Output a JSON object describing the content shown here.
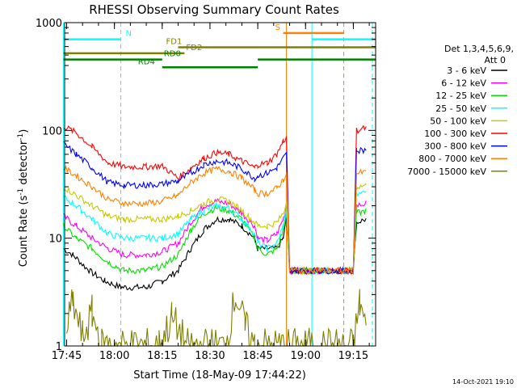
{
  "chart_data": {
    "type": "line",
    "title": "RHESSI Observing Summary Count Rates",
    "xlabel": "Start Time (18-May-09 17:44:22)",
    "ylabel_parts": [
      "Count Rate (s",
      "-1",
      " detector",
      "-1",
      ")"
    ],
    "yscale": "log",
    "ylim": [
      1,
      1000
    ],
    "xlim": [
      "17:44:22",
      "19:22:00"
    ],
    "x_ticks": [
      "17:45",
      "18:00",
      "18:15",
      "18:30",
      "18:45",
      "19:00",
      "19:15"
    ],
    "y_ticks": [
      "1",
      "10",
      "100",
      "1000"
    ],
    "legend_title": [
      "Det 1,3,4,5,6,9,",
      "Att 0"
    ],
    "legend_placement": "right",
    "series": [
      {
        "name": "3 - 6 keV",
        "color": "#000000",
        "points": [
          [
            "17:44",
            8
          ],
          [
            "17:47",
            7
          ],
          [
            "17:52",
            5
          ],
          [
            "17:57",
            4
          ],
          [
            "18:02",
            3.5
          ],
          [
            "18:10",
            3.5
          ],
          [
            "18:15",
            4
          ],
          [
            "18:20",
            5
          ],
          [
            "18:24",
            8
          ],
          [
            "18:28",
            12
          ],
          [
            "18:32",
            15
          ],
          [
            "18:36",
            15
          ],
          [
            "18:40",
            13
          ],
          [
            "18:44",
            10
          ],
          [
            "18:45",
            8
          ],
          [
            "18:48",
            8
          ],
          [
            "18:51",
            8
          ],
          [
            "18:53",
            10
          ],
          [
            "18:54",
            15
          ],
          [
            "18:55",
            5
          ],
          [
            "19:15",
            5
          ],
          [
            "19:16",
            14
          ],
          [
            "19:19",
            15
          ]
        ]
      },
      {
        "name": "6 - 12 keV",
        "color": "#ff00ff",
        "points": [
          [
            "17:44",
            16
          ],
          [
            "17:48",
            13
          ],
          [
            "17:53",
            10
          ],
          [
            "17:58",
            8
          ],
          [
            "18:03",
            7
          ],
          [
            "18:10",
            7
          ],
          [
            "18:15",
            7.5
          ],
          [
            "18:20",
            9
          ],
          [
            "18:24",
            14
          ],
          [
            "18:28",
            20
          ],
          [
            "18:32",
            22
          ],
          [
            "18:36",
            21
          ],
          [
            "18:40",
            17
          ],
          [
            "18:44",
            13
          ],
          [
            "18:45",
            10
          ],
          [
            "18:48",
            9.5
          ],
          [
            "18:51",
            11
          ],
          [
            "18:53",
            15
          ],
          [
            "18:54",
            20
          ],
          [
            "18:55",
            5
          ],
          [
            "19:15",
            5
          ],
          [
            "19:16",
            20
          ],
          [
            "19:19",
            21
          ]
        ]
      },
      {
        "name": "12 - 25 keV",
        "color": "#00e000",
        "points": [
          [
            "17:44",
            13
          ],
          [
            "17:48",
            10
          ],
          [
            "17:53",
            8
          ],
          [
            "17:58",
            6
          ],
          [
            "18:03",
            5
          ],
          [
            "18:10",
            5
          ],
          [
            "18:15",
            5.5
          ],
          [
            "18:20",
            7
          ],
          [
            "18:24",
            12
          ],
          [
            "18:28",
            17
          ],
          [
            "18:32",
            19
          ],
          [
            "18:36",
            18
          ],
          [
            "18:40",
            15
          ],
          [
            "18:44",
            10
          ],
          [
            "18:45",
            8
          ],
          [
            "18:48",
            7
          ],
          [
            "18:51",
            8
          ],
          [
            "18:53",
            12
          ],
          [
            "18:54",
            17
          ],
          [
            "18:55",
            5
          ],
          [
            "19:15",
            5
          ],
          [
            "19:16",
            17
          ],
          [
            "19:19",
            18
          ]
        ]
      },
      {
        "name": "25 - 50 keV",
        "color": "#00ffff",
        "points": [
          [
            "17:44",
            24
          ],
          [
            "17:48",
            20
          ],
          [
            "17:53",
            15
          ],
          [
            "17:58",
            11
          ],
          [
            "18:03",
            10
          ],
          [
            "18:10",
            10
          ],
          [
            "18:15",
            10
          ],
          [
            "18:20",
            11
          ],
          [
            "18:24",
            15
          ],
          [
            "18:28",
            18
          ],
          [
            "18:32",
            20
          ],
          [
            "18:36",
            19
          ],
          [
            "18:40",
            15
          ],
          [
            "18:44",
            11
          ],
          [
            "18:45",
            9
          ],
          [
            "18:48",
            8
          ],
          [
            "18:51",
            9
          ],
          [
            "18:53",
            13
          ],
          [
            "18:54",
            18
          ],
          [
            "18:55",
            5
          ],
          [
            "19:15",
            5
          ],
          [
            "19:16",
            25
          ],
          [
            "19:19",
            27
          ]
        ]
      },
      {
        "name": "50 - 100 keV",
        "color": "#c8c800",
        "points": [
          [
            "17:44",
            30
          ],
          [
            "17:48",
            25
          ],
          [
            "17:53",
            20
          ],
          [
            "17:58",
            16
          ],
          [
            "18:03",
            15
          ],
          [
            "18:10",
            15
          ],
          [
            "18:15",
            15
          ],
          [
            "18:20",
            16
          ],
          [
            "18:24",
            18
          ],
          [
            "18:28",
            21
          ],
          [
            "18:32",
            23
          ],
          [
            "18:36",
            22
          ],
          [
            "18:40",
            18
          ],
          [
            "18:44",
            14
          ],
          [
            "18:45",
            13
          ],
          [
            "18:48",
            13
          ],
          [
            "18:51",
            14
          ],
          [
            "18:53",
            17
          ],
          [
            "18:54",
            22
          ],
          [
            "18:55",
            5
          ],
          [
            "19:15",
            5
          ],
          [
            "19:16",
            30
          ],
          [
            "19:19",
            31
          ]
        ]
      },
      {
        "name": "100 - 300 keV",
        "color": "#ff0000",
        "points": [
          [
            "17:44",
            110
          ],
          [
            "17:48",
            95
          ],
          [
            "17:53",
            70
          ],
          [
            "17:58",
            50
          ],
          [
            "18:03",
            46
          ],
          [
            "18:10",
            46
          ],
          [
            "18:15",
            47
          ],
          [
            "18:20",
            36
          ],
          [
            "18:24",
            45
          ],
          [
            "18:28",
            55
          ],
          [
            "18:32",
            62
          ],
          [
            "18:36",
            60
          ],
          [
            "18:40",
            52
          ],
          [
            "18:44",
            45
          ],
          [
            "18:45",
            48
          ],
          [
            "18:48",
            50
          ],
          [
            "18:51",
            60
          ],
          [
            "18:53",
            80
          ],
          [
            "18:54",
            85
          ],
          [
            "18:55",
            5
          ],
          [
            "19:15",
            5
          ],
          [
            "19:16",
            100
          ],
          [
            "19:19",
            105
          ]
        ]
      },
      {
        "name": "300 - 800 keV",
        "color": "#0000ff",
        "points": [
          [
            "17:44",
            75
          ],
          [
            "17:48",
            60
          ],
          [
            "17:53",
            45
          ],
          [
            "17:58",
            33
          ],
          [
            "18:03",
            31
          ],
          [
            "18:10",
            31
          ],
          [
            "18:15",
            32
          ],
          [
            "18:20",
            34
          ],
          [
            "18:24",
            40
          ],
          [
            "18:28",
            48
          ],
          [
            "18:32",
            52
          ],
          [
            "18:36",
            50
          ],
          [
            "18:40",
            44
          ],
          [
            "18:44",
            36
          ],
          [
            "18:45",
            38
          ],
          [
            "18:48",
            40
          ],
          [
            "18:51",
            45
          ],
          [
            "18:53",
            55
          ],
          [
            "18:54",
            60
          ],
          [
            "18:55",
            5
          ],
          [
            "19:15",
            5
          ],
          [
            "19:16",
            65
          ],
          [
            "19:19",
            66
          ]
        ]
      },
      {
        "name": "800 - 7000 keV",
        "color": "#ff8000",
        "points": [
          [
            "17:44",
            45
          ],
          [
            "17:48",
            38
          ],
          [
            "17:53",
            30
          ],
          [
            "17:58",
            23
          ],
          [
            "18:03",
            21
          ],
          [
            "18:10",
            21
          ],
          [
            "18:15",
            22
          ],
          [
            "18:20",
            25
          ],
          [
            "18:24",
            33
          ],
          [
            "18:28",
            40
          ],
          [
            "18:32",
            44
          ],
          [
            "18:36",
            42
          ],
          [
            "18:40",
            36
          ],
          [
            "18:44",
            28
          ],
          [
            "18:45",
            26
          ],
          [
            "18:48",
            26
          ],
          [
            "18:51",
            29
          ],
          [
            "18:53",
            35
          ],
          [
            "18:54",
            40
          ],
          [
            "18:55",
            5
          ],
          [
            "19:15",
            5
          ],
          [
            "19:16",
            40
          ],
          [
            "19:19",
            41
          ]
        ]
      },
      {
        "name": "7000 - 15000 keV",
        "color": "#808000",
        "points": [
          [
            "17:45",
            1.5
          ],
          [
            "17:47",
            2.5
          ],
          [
            "17:50",
            1.2
          ],
          [
            "17:53",
            2
          ],
          [
            "17:56",
            1
          ],
          [
            "18:14",
            1
          ],
          [
            "18:18",
            1.8
          ],
          [
            "18:23",
            1
          ],
          [
            "18:35",
            1
          ],
          [
            "18:38",
            3
          ],
          [
            "18:41",
            1.5
          ],
          [
            "18:44",
            1
          ],
          [
            "19:15",
            1
          ],
          [
            "19:17",
            2.5
          ],
          [
            "19:19",
            1.5
          ]
        ]
      }
    ],
    "annotations": [
      {
        "label": "N",
        "type": "bar",
        "color": "#00ffff",
        "level": 700,
        "start": "17:44",
        "end": "18:02"
      },
      {
        "label": "N",
        "type": "bar",
        "color": "#00ffff",
        "level": 700,
        "start": "19:02",
        "end": "19:22"
      },
      {
        "label": "S",
        "type": "bar",
        "color": "#ff8000",
        "level": 800,
        "start": "18:53",
        "end": "19:12"
      },
      {
        "label": "FD1",
        "type": "bar",
        "color": "#808000",
        "level": 590,
        "start": "18:20",
        "end": "19:22"
      },
      {
        "label": "FD2",
        "type": "bar",
        "color": "#808000",
        "level": 520,
        "start": "17:44",
        "end": "18:22"
      },
      {
        "label": "RD0",
        "type": "bar",
        "color": "#008000",
        "level": 455,
        "start": "17:44",
        "end": "18:15"
      },
      {
        "label": "RD0",
        "type": "bar",
        "color": "#008000",
        "level": 455,
        "start": "18:45",
        "end": "19:22"
      },
      {
        "label": "RD4",
        "type": "bar",
        "color": "#008000",
        "level": 385,
        "start": "18:15",
        "end": "18:45"
      }
    ],
    "vlines": [
      {
        "time": "17:44",
        "color": "#00ffff",
        "style": "solid"
      },
      {
        "time": "18:02",
        "color": "#00ffff",
        "style": "dashed"
      },
      {
        "time": "18:54",
        "color": "#ff8000",
        "style": "solid"
      },
      {
        "time": "19:02",
        "color": "#00ffff",
        "style": "solid"
      },
      {
        "time": "19:12",
        "color": "#ff8000",
        "style": "dashed"
      },
      {
        "time": "19:21",
        "color": "#00ffff",
        "style": "dashed"
      }
    ],
    "grid": false
  },
  "footer_date": "14-Oct-2021 19:10"
}
